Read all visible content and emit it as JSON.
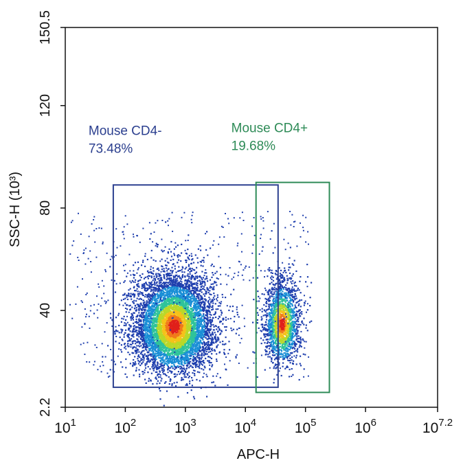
{
  "chart_data": {
    "type": "scatter",
    "xlabel": "APC-H",
    "ylabel": "SSC-H (10³)",
    "x_scale": "log",
    "xlim": [
      10,
      15848931.92
    ],
    "ylim": [
      2.2,
      150.5
    ],
    "x_ticks": [
      {
        "value": 10,
        "base": "10",
        "exp": "1"
      },
      {
        "value": 100,
        "base": "10",
        "exp": "2"
      },
      {
        "value": 1000,
        "base": "10",
        "exp": "3"
      },
      {
        "value": 10000,
        "base": "10",
        "exp": "4"
      },
      {
        "value": 100000,
        "base": "10",
        "exp": "5"
      },
      {
        "value": 1000000,
        "base": "10",
        "exp": "6"
      },
      {
        "value": 15848931.92,
        "base": "10",
        "exp": "7.2"
      }
    ],
    "y_ticks": [
      {
        "value": 2.2,
        "label": "2.2"
      },
      {
        "value": 40,
        "label": "40"
      },
      {
        "value": 80,
        "label": "80"
      },
      {
        "value": 120,
        "label": "120"
      },
      {
        "value": 150.5,
        "label": "150.5"
      }
    ],
    "grid": false,
    "density_colormap": [
      "#1f3fae",
      "#1a8fd6",
      "#2fc39a",
      "#b8d82a",
      "#f5c21a",
      "#f07a1a",
      "#e0201a"
    ],
    "populations": [
      {
        "center_log10_x": 2.8,
        "center_y": 34,
        "spread_log10_x": 0.33,
        "spread_y": 8,
        "relative_size": 0.74
      },
      {
        "center_log10_x": 4.6,
        "center_y": 35,
        "spread_log10_x": 0.15,
        "spread_y": 7,
        "relative_size": 0.2
      }
    ],
    "gates": [
      {
        "name": "Mouse CD4-",
        "percent": "73.48%",
        "color": "#2b3f8f",
        "x_range": [
          63,
          35000
        ],
        "y_range": [
          10,
          89
        ]
      },
      {
        "name": "Mouse CD4+",
        "percent": "19.68%",
        "color": "#2e8b57",
        "x_range": [
          15000,
          250000
        ],
        "y_range": [
          8,
          90
        ]
      }
    ]
  }
}
